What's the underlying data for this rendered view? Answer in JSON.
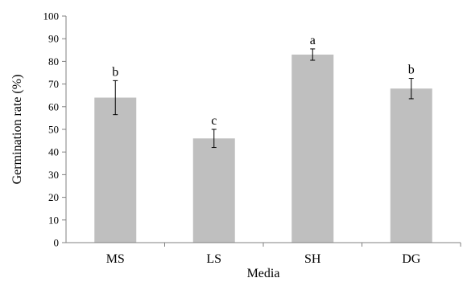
{
  "chart_data": {
    "type": "bar",
    "categories": [
      "MS",
      "LS",
      "SH",
      "DG"
    ],
    "values": [
      64,
      46,
      83,
      68
    ],
    "error": [
      7.5,
      4,
      2.5,
      4.5
    ],
    "significance_letters": [
      "b",
      "c",
      "a",
      "b"
    ],
    "title": "",
    "xlabel": "Media",
    "ylabel": "Germination rate (%)",
    "ylim": [
      0,
      100
    ],
    "yticks": [
      0,
      10,
      20,
      30,
      40,
      50,
      60,
      70,
      80,
      90,
      100
    ],
    "grid": false,
    "legend": "none",
    "colors": {
      "bar": "#bfbfbf",
      "axis": "#808080",
      "error_bar": "#000000"
    }
  }
}
